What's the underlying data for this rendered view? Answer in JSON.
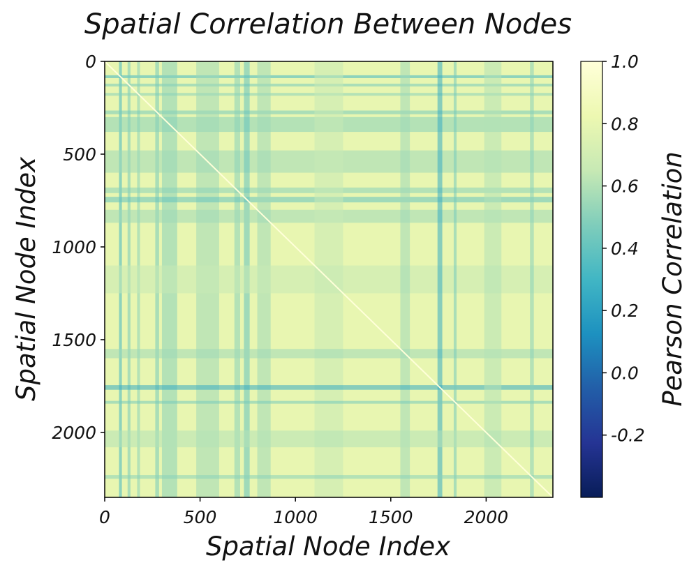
{
  "chart_data": {
    "type": "heatmap",
    "title": "Spatial Correlation Between Nodes",
    "xlabel": "Spatial Node Index",
    "ylabel": "Spatial Node Index",
    "x_range": [
      0,
      2350
    ],
    "y_range": [
      0,
      2350
    ],
    "y_inverted": true,
    "x_ticks": [
      0,
      500,
      1000,
      1500,
      2000
    ],
    "y_ticks": [
      0,
      500,
      1000,
      1500,
      2000
    ],
    "colorbar": {
      "label": "Pearson Correlation",
      "colormap": "YlGnBu_r",
      "range": [
        -0.4,
        1.0
      ],
      "ticks": [
        -0.2,
        0.0,
        0.2,
        0.4,
        0.6,
        0.8,
        1.0
      ],
      "tick_labels": [
        "-0.2",
        "0.0",
        "0.2",
        "0.4",
        "0.6",
        "0.8",
        "1.0"
      ]
    },
    "diagonal_value": 1.0,
    "background_value": 0.8,
    "low_correlation_bands": [
      {
        "start": 75,
        "end": 90,
        "value": 0.3
      },
      {
        "start": 120,
        "end": 135,
        "value": 0.45
      },
      {
        "start": 170,
        "end": 185,
        "value": 0.5
      },
      {
        "start": 265,
        "end": 285,
        "value": 0.45
      },
      {
        "start": 300,
        "end": 380,
        "value": 0.5
      },
      {
        "start": 480,
        "end": 600,
        "value": 0.55
      },
      {
        "start": 680,
        "end": 710,
        "value": 0.5
      },
      {
        "start": 730,
        "end": 760,
        "value": 0.4
      },
      {
        "start": 800,
        "end": 870,
        "value": 0.55
      },
      {
        "start": 1100,
        "end": 1250,
        "value": 0.65
      },
      {
        "start": 1550,
        "end": 1600,
        "value": 0.55
      },
      {
        "start": 1745,
        "end": 1770,
        "value": 0.25
      },
      {
        "start": 1830,
        "end": 1845,
        "value": 0.45
      },
      {
        "start": 1990,
        "end": 2080,
        "value": 0.6
      },
      {
        "start": 2230,
        "end": 2250,
        "value": 0.5
      }
    ]
  }
}
